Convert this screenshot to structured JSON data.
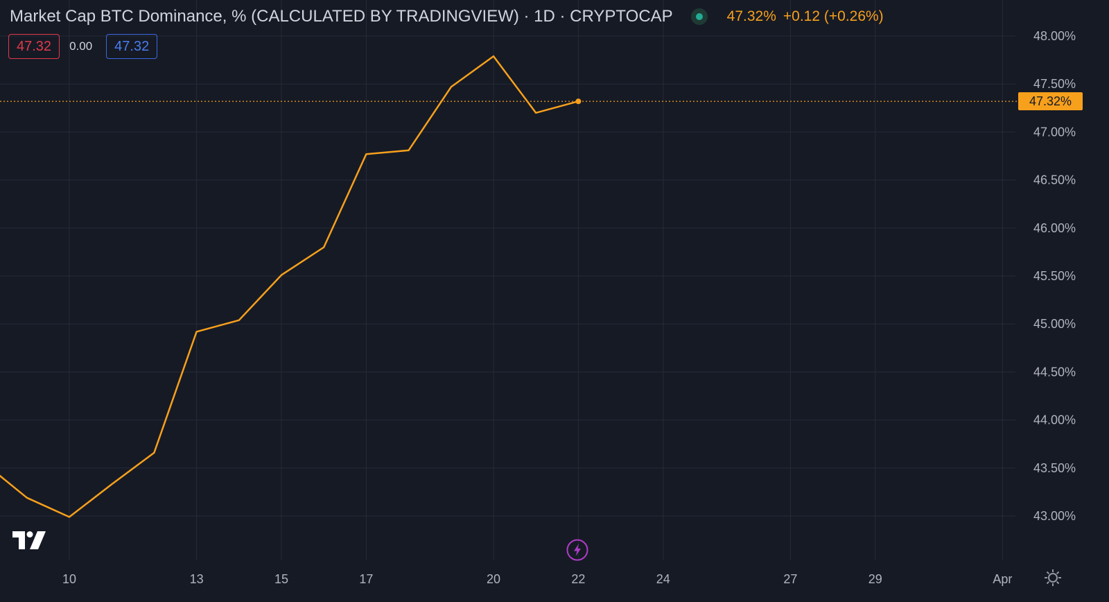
{
  "header": {
    "title": "Market Cap BTC Dominance, % (CALCULATED BY TRADINGVIEW) · 1D · CRYPTOCAP",
    "last_price": "47.32%",
    "change": "+0.12 (+0.26%)",
    "status_icon": "market-open-dot"
  },
  "ohlc": {
    "left_value": "47.32",
    "mid_value": "0.00",
    "right_value": "47.32"
  },
  "price_tag": "47.32%",
  "colors": {
    "background": "#161a25",
    "line": "#f7a01c",
    "grid": "#262b38",
    "text": "#b2b5be",
    "red": "#e03a49",
    "blue": "#3a6ae0"
  },
  "icons": {
    "logo": "tradingview-logo-icon",
    "event": "lightning-icon",
    "settings": "gear-icon"
  },
  "chart_data": {
    "type": "line",
    "title": "Market Cap BTC Dominance, % (CALCULATED BY TRADINGVIEW) · 1D · CRYPTOCAP",
    "series": [
      {
        "x": [
          "Mar 8",
          "Mar 9",
          "Mar 10",
          "Mar 11",
          "Mar 12",
          "Mar 13",
          "Mar 14",
          "Mar 15",
          "Mar 16",
          "Mar 17",
          "Mar 18",
          "Mar 19",
          "Mar 20",
          "Mar 21",
          "Mar 22"
        ],
        "values": [
          43.55,
          43.19,
          42.99,
          43.33,
          43.66,
          44.92,
          45.04,
          45.51,
          45.8,
          46.77,
          46.81,
          47.47,
          47.79,
          47.2,
          47.32
        ]
      }
    ],
    "x_ticks": [
      "10",
      "13",
      "15",
      "17",
      "20",
      "22",
      "24",
      "27",
      "29",
      "Apr"
    ],
    "y_ticks": [
      "48.00%",
      "47.50%",
      "47.00%",
      "46.50%",
      "46.00%",
      "45.50%",
      "45.00%",
      "44.50%",
      "44.00%",
      "43.50%",
      "43.00%"
    ],
    "ylim": [
      42.6,
      48.3
    ],
    "last_value": 47.32,
    "grid": true
  }
}
